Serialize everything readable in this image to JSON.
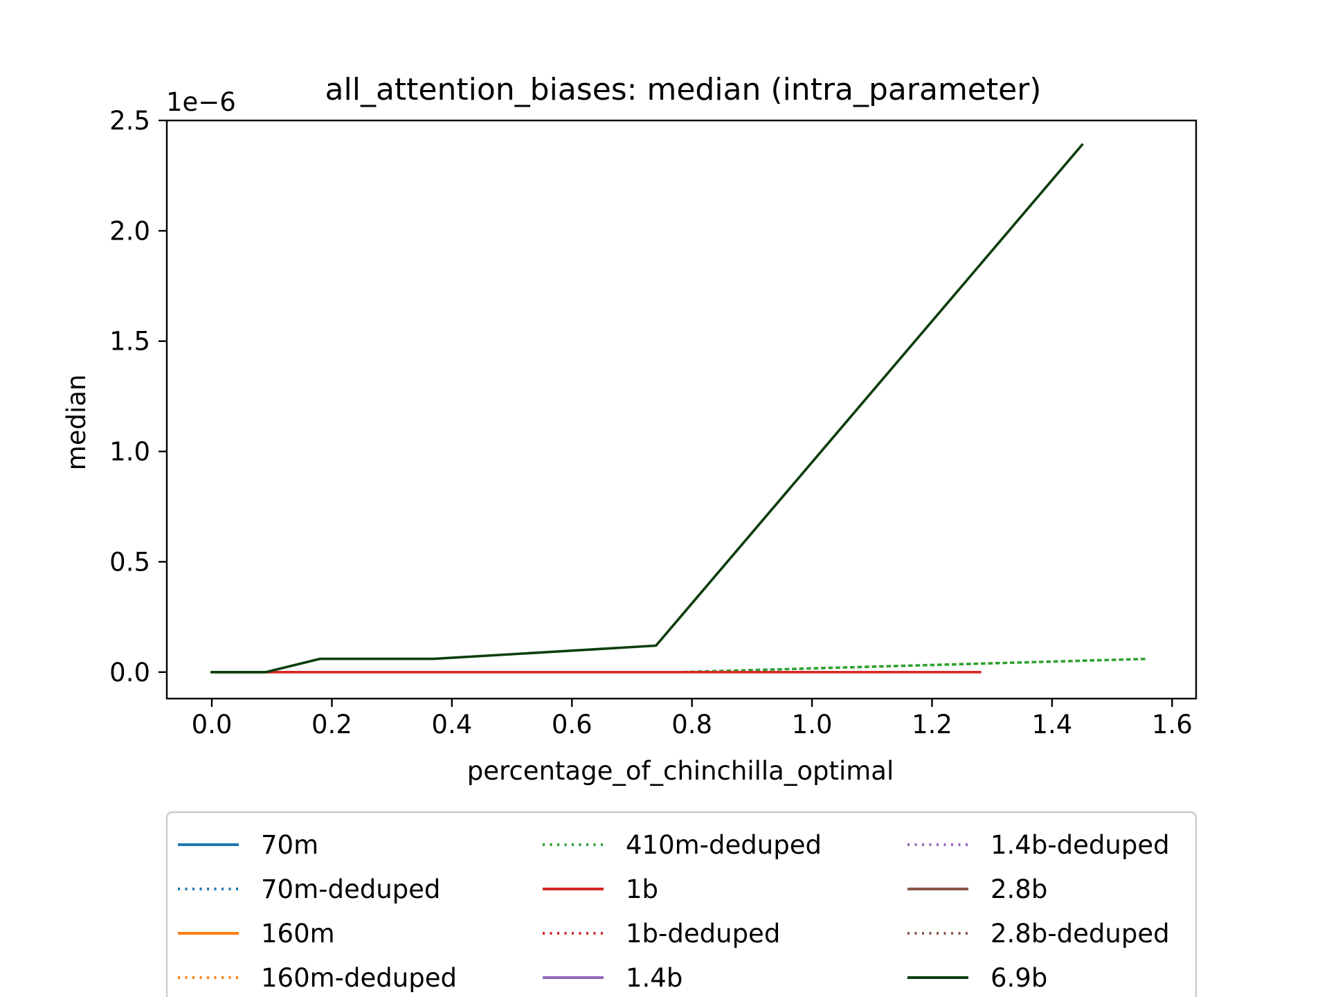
{
  "chart_data": {
    "type": "line",
    "title": "all_attention_biases: median (intra_parameter)",
    "xlabel": "percentage_of_chinchilla_optimal",
    "ylabel": "median",
    "y_offset_text": "1e−6",
    "xlim": [
      -0.075,
      1.64
    ],
    "ylim": [
      -1.2e-07,
      2.5e-06
    ],
    "x_ticks": [
      0.0,
      0.2,
      0.4,
      0.6,
      0.8,
      1.0,
      1.2,
      1.4,
      1.6
    ],
    "x_tick_labels": [
      "0.0",
      "0.2",
      "0.4",
      "0.6",
      "0.8",
      "1.0",
      "1.2",
      "1.4",
      "1.6"
    ],
    "y_ticks": [
      0.0,
      5e-07,
      1e-06,
      1.5e-06,
      2e-06,
      2.5e-06
    ],
    "y_tick_labels": [
      "0.0",
      "0.5",
      "1.0",
      "1.5",
      "2.0",
      "2.5"
    ],
    "grid": false,
    "legend_position": "below the plot, 3 columns",
    "series": [
      {
        "name": "70m",
        "color": "#1f77b4",
        "dash": "solid",
        "x": [],
        "y": []
      },
      {
        "name": "70m-deduped",
        "color": "#1f77b4",
        "dash": "dotted",
        "x": [],
        "y": []
      },
      {
        "name": "160m",
        "color": "#ff7f0e",
        "dash": "solid",
        "x": [],
        "y": []
      },
      {
        "name": "160m-deduped",
        "color": "#ff7f0e",
        "dash": "dotted",
        "x": [],
        "y": []
      },
      {
        "name": "410m-deduped",
        "color": "#2ca02c",
        "dash": "dotted",
        "x": [
          0.0,
          0.09,
          0.18,
          0.37,
          0.74,
          0.78,
          1.56
        ],
        "y": [
          0.0,
          0.0,
          0.0,
          0.0,
          0.0,
          0.0,
          6e-08
        ]
      },
      {
        "name": "1b",
        "color": "#d62728",
        "dash": "solid",
        "x": [
          0.0,
          0.09,
          0.18,
          0.37,
          0.74,
          1.28
        ],
        "y": [
          0.0,
          0.0,
          0.0,
          0.0,
          0.0,
          0.0
        ]
      },
      {
        "name": "1b-deduped",
        "color": "#d62728",
        "dash": "dotted",
        "x": [],
        "y": []
      },
      {
        "name": "1.4b",
        "color": "#9467bd",
        "dash": "solid",
        "x": [],
        "y": []
      },
      {
        "name": "1.4b-deduped",
        "color": "#9467bd",
        "dash": "dotted",
        "x": [],
        "y": []
      },
      {
        "name": "2.8b",
        "color": "#8c564b",
        "dash": "solid",
        "x": [],
        "y": []
      },
      {
        "name": "2.8b-deduped",
        "color": "#8c564b",
        "dash": "dotted",
        "x": [],
        "y": []
      },
      {
        "name": "6.9b",
        "color": "#0b3d0b",
        "dash": "solid",
        "x": [
          0.0,
          0.09,
          0.18,
          0.37,
          0.74,
          1.45
        ],
        "y": [
          0.0,
          0.0,
          6e-08,
          6e-08,
          1.2e-07,
          2.39e-06
        ]
      }
    ]
  }
}
